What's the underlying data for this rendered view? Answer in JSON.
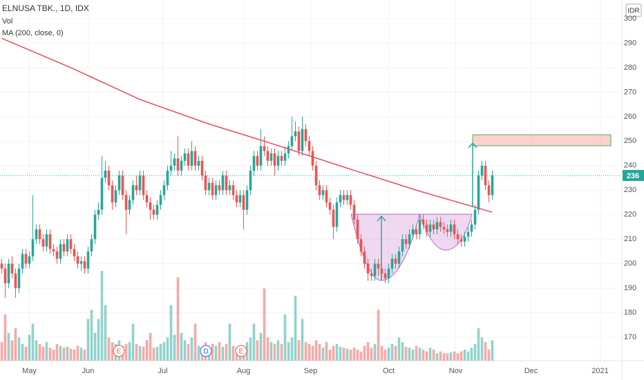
{
  "chart_data": {
    "type": "candlestick",
    "title": "ELNUSA TBK., 1D, IDX",
    "volume_label": "Vol",
    "currency": "IDR",
    "events": [
      "E",
      "D",
      "E"
    ],
    "up_color": "#26a69a",
    "down_color": "#ef5350",
    "ylim": [
      160,
      305
    ],
    "yticks": [
      170,
      180,
      190,
      200,
      210,
      220,
      230,
      240,
      250,
      260,
      270,
      280,
      290,
      300
    ],
    "xlim": [
      0,
      186
    ],
    "xticks": [
      {
        "value": 8,
        "label": "May"
      },
      {
        "value": 25,
        "label": "Jun"
      },
      {
        "value": 46.6,
        "label": "Jul"
      },
      {
        "value": 70,
        "label": "Aug"
      },
      {
        "value": 89.4,
        "label": "Sep"
      },
      {
        "value": 112,
        "label": "Oct"
      },
      {
        "value": 131.4,
        "label": "Nov"
      },
      {
        "value": 153.2,
        "label": "Dec"
      },
      {
        "value": 173.2,
        "label": "2021"
      }
    ],
    "ohlc": [
      [
        200,
        202,
        196,
        198
      ],
      [
        198,
        200,
        186,
        192
      ],
      [
        192,
        202,
        190,
        200
      ],
      [
        200,
        203,
        194,
        196
      ],
      [
        196,
        198,
        186,
        190
      ],
      [
        190,
        200,
        188,
        198
      ],
      [
        198,
        206,
        196,
        204
      ],
      [
        204,
        206,
        198,
        200
      ],
      [
        200,
        205,
        198,
        203
      ],
      [
        203,
        228,
        201,
        210
      ],
      [
        210,
        216,
        208,
        214
      ],
      [
        214,
        216,
        208,
        210
      ],
      [
        210,
        212,
        205,
        207
      ],
      [
        207,
        214,
        205,
        212
      ],
      [
        212,
        214,
        204,
        206
      ],
      [
        206,
        208,
        203,
        205
      ],
      [
        205,
        207,
        200,
        202
      ],
      [
        202,
        210,
        200,
        208
      ],
      [
        208,
        210,
        203,
        205
      ],
      [
        205,
        212,
        203,
        210
      ],
      [
        210,
        212,
        204,
        206
      ],
      [
        206,
        208,
        201,
        203
      ],
      [
        203,
        205,
        198,
        200
      ],
      [
        200,
        203,
        197,
        201
      ],
      [
        201,
        203,
        196,
        198
      ],
      [
        198,
        207,
        196,
        205
      ],
      [
        205,
        212,
        203,
        210
      ],
      [
        210,
        222,
        208,
        220
      ],
      [
        220,
        225,
        218,
        222
      ],
      [
        222,
        244,
        220,
        235
      ],
      [
        235,
        242,
        233,
        238
      ],
      [
        238,
        240,
        230,
        232
      ],
      [
        232,
        234,
        222,
        225
      ],
      [
        225,
        232,
        223,
        230
      ],
      [
        230,
        238,
        228,
        236
      ],
      [
        236,
        238,
        226,
        228
      ],
      [
        228,
        230,
        212,
        222
      ],
      [
        222,
        228,
        220,
        226
      ],
      [
        226,
        234,
        224,
        232
      ],
      [
        232,
        236,
        228,
        230
      ],
      [
        230,
        238,
        228,
        236
      ],
      [
        236,
        238,
        226,
        228
      ],
      [
        228,
        230,
        223,
        225
      ],
      [
        225,
        227,
        218,
        222
      ],
      [
        222,
        224,
        218,
        220
      ],
      [
        220,
        226,
        218,
        224
      ],
      [
        224,
        230,
        222,
        228
      ],
      [
        228,
        234,
        226,
        232
      ],
      [
        232,
        240,
        230,
        238
      ],
      [
        238,
        246,
        236,
        240
      ],
      [
        240,
        245,
        238,
        243
      ],
      [
        243,
        252,
        236,
        238
      ],
      [
        238,
        244,
        236,
        242
      ],
      [
        242,
        247,
        240,
        245
      ],
      [
        245,
        247,
        238,
        240
      ],
      [
        240,
        250,
        238,
        246
      ],
      [
        246,
        248,
        238,
        240
      ],
      [
        240,
        244,
        238,
        242
      ],
      [
        242,
        244,
        234,
        236
      ],
      [
        236,
        238,
        228,
        230
      ],
      [
        230,
        235,
        228,
        233
      ],
      [
        233,
        235,
        226,
        228
      ],
      [
        228,
        234,
        226,
        232
      ],
      [
        232,
        234,
        228,
        230
      ],
      [
        230,
        238,
        228,
        236
      ],
      [
        236,
        238,
        228,
        230
      ],
      [
        230,
        234,
        228,
        232
      ],
      [
        232,
        234,
        226,
        228
      ],
      [
        228,
        230,
        223,
        225
      ],
      [
        225,
        230,
        223,
        228
      ],
      [
        228,
        230,
        214,
        222
      ],
      [
        222,
        232,
        220,
        230
      ],
      [
        230,
        240,
        228,
        238
      ],
      [
        238,
        246,
        236,
        244
      ],
      [
        244,
        246,
        238,
        240
      ],
      [
        240,
        255,
        238,
        248
      ],
      [
        248,
        252,
        244,
        246
      ],
      [
        246,
        248,
        240,
        242
      ],
      [
        242,
        247,
        240,
        245
      ],
      [
        245,
        247,
        236,
        240
      ],
      [
        240,
        246,
        238,
        244
      ],
      [
        244,
        246,
        240,
        242
      ],
      [
        242,
        248,
        240,
        245
      ],
      [
        245,
        250,
        243,
        248
      ],
      [
        248,
        260,
        246,
        252
      ],
      [
        252,
        258,
        250,
        254
      ],
      [
        254,
        256,
        244,
        246
      ],
      [
        246,
        260,
        244,
        255
      ],
      [
        255,
        257,
        248,
        250
      ],
      [
        250,
        252,
        244,
        246
      ],
      [
        246,
        248,
        238,
        240
      ],
      [
        240,
        242,
        230,
        232
      ],
      [
        232,
        234,
        226,
        228
      ],
      [
        228,
        232,
        226,
        230
      ],
      [
        230,
        232,
        223,
        225
      ],
      [
        225,
        227,
        220,
        222
      ],
      [
        222,
        224,
        210,
        215
      ],
      [
        215,
        227,
        213,
        225
      ],
      [
        225,
        230,
        223,
        228
      ],
      [
        228,
        230,
        224,
        226
      ],
      [
        226,
        230,
        224,
        228
      ],
      [
        228,
        230,
        222,
        224
      ],
      [
        224,
        226,
        216,
        218
      ],
      [
        218,
        220,
        208,
        210
      ],
      [
        210,
        212,
        203,
        205
      ],
      [
        205,
        207,
        198,
        200
      ],
      [
        200,
        202,
        193,
        196
      ],
      [
        196,
        198,
        193,
        195
      ],
      [
        195,
        202,
        193,
        200
      ],
      [
        200,
        202,
        195,
        198
      ],
      [
        198,
        200,
        194,
        196
      ],
      [
        196,
        198,
        192,
        194
      ],
      [
        194,
        200,
        192,
        198
      ],
      [
        198,
        204,
        196,
        202
      ],
      [
        202,
        204,
        198,
        200
      ],
      [
        200,
        207,
        198,
        205
      ],
      [
        205,
        212,
        203,
        210
      ],
      [
        210,
        212,
        206,
        208
      ],
      [
        208,
        214,
        206,
        212
      ],
      [
        212,
        216,
        210,
        214
      ],
      [
        214,
        216,
        210,
        212
      ],
      [
        212,
        220,
        210,
        218
      ],
      [
        218,
        220,
        214,
        216
      ],
      [
        216,
        218,
        211,
        213
      ],
      [
        213,
        218,
        211,
        216
      ],
      [
        216,
        218,
        212,
        214
      ],
      [
        214,
        219,
        212,
        217
      ],
      [
        217,
        219,
        213,
        215
      ],
      [
        215,
        217,
        212,
        214
      ],
      [
        214,
        216,
        211,
        213
      ],
      [
        213,
        218,
        211,
        216
      ],
      [
        216,
        218,
        210,
        212
      ],
      [
        212,
        214,
        208,
        210
      ],
      [
        210,
        212,
        207,
        209
      ],
      [
        209,
        213,
        207,
        211
      ],
      [
        211,
        215,
        209,
        213
      ],
      [
        213,
        218,
        211,
        216
      ],
      [
        216,
        224,
        214,
        222
      ],
      [
        222,
        238,
        220,
        236
      ],
      [
        236,
        242,
        234,
        240
      ],
      [
        240,
        242,
        230,
        232
      ],
      [
        232,
        234,
        225,
        228
      ],
      [
        228,
        238,
        226,
        236
      ]
    ],
    "volume": [
      20,
      50,
      30,
      22,
      35,
      25,
      18,
      15,
      28,
      40,
      22,
      18,
      15,
      20,
      14,
      12,
      18,
      16,
      14,
      15,
      13,
      12,
      16,
      14,
      12,
      45,
      55,
      30,
      45,
      97,
      60,
      25,
      20,
      18,
      22,
      16,
      18,
      20,
      40,
      18,
      16,
      15,
      22,
      30,
      14,
      15,
      18,
      20,
      25,
      60,
      28,
      90,
      30,
      22,
      18,
      25,
      40,
      16,
      15,
      20,
      14,
      18,
      16,
      20,
      15,
      18,
      40,
      16,
      14,
      12,
      15,
      20,
      25,
      40,
      22,
      30,
      78,
      25,
      20,
      18,
      22,
      18,
      50,
      20,
      25,
      70,
      22,
      45,
      20,
      18,
      16,
      22,
      18,
      14,
      20,
      12,
      16,
      18,
      15,
      14,
      13,
      12,
      14,
      12,
      10,
      16,
      20,
      14,
      18,
      55,
      16,
      12,
      14,
      18,
      16,
      25,
      20,
      15,
      14,
      12,
      16,
      14,
      12,
      10,
      14,
      12,
      8,
      10,
      8,
      8,
      9,
      10,
      8,
      10,
      12,
      10,
      14,
      18,
      35,
      25,
      20,
      12,
      22
    ],
    "ma": {
      "name": "MA (200, close, 0)",
      "color": "#e84a5f",
      "x": [
        0,
        20,
        40,
        60,
        76,
        100,
        120,
        142
      ],
      "values": [
        292,
        280,
        267,
        257,
        250,
        239,
        230,
        221
      ]
    }
  }
}
